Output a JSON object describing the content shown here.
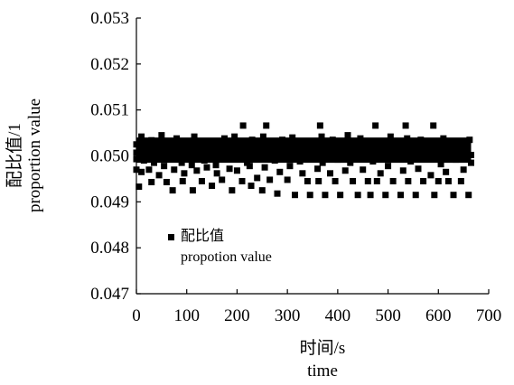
{
  "chart_data": {
    "type": "scatter",
    "title": "",
    "xlabel_lines": [
      "时间/s",
      "time"
    ],
    "ylabel_lines": [
      "配比值/1",
      "proportion value"
    ],
    "xlim": [
      0,
      700
    ],
    "ylim": [
      0.047,
      0.053
    ],
    "xticks": [
      0,
      100,
      200,
      300,
      400,
      500,
      600,
      700
    ],
    "yticks": [
      "0.047",
      "0.048",
      "0.049",
      "0.050",
      "0.051",
      "0.052",
      "0.053"
    ],
    "grid": false,
    "legend": {
      "placement": "inside-bottom-left",
      "entries": [
        {
          "label_lines": [
            "配比值",
            "propotion value"
          ],
          "marker": "square"
        }
      ]
    },
    "series": [
      {
        "name": "配比值",
        "marker": "square",
        "color": "#000000",
        "points": [
          [
            0,
            0.04993
          ],
          [
            0,
            0.05025
          ],
          [
            0,
            0.0497
          ],
          [
            0,
            0.05007
          ],
          [
            5,
            0.04933
          ],
          [
            10,
            0.05042
          ],
          [
            10,
            0.04965
          ],
          [
            15,
            0.0499
          ],
          [
            20,
            0.05005
          ],
          [
            22,
            0.05023
          ],
          [
            25,
            0.0497
          ],
          [
            30,
            0.05034
          ],
          [
            30,
            0.04943
          ],
          [
            35,
            0.04985
          ],
          [
            40,
            0.05015
          ],
          [
            45,
            0.04958
          ],
          [
            50,
            0.05045
          ],
          [
            52,
            0.05002
          ],
          [
            55,
            0.04978
          ],
          [
            60,
            0.04943
          ],
          [
            65,
            0.05028
          ],
          [
            70,
            0.04995
          ],
          [
            72,
            0.04925
          ],
          [
            75,
            0.0497
          ],
          [
            80,
            0.05038
          ],
          [
            85,
            0.05012
          ],
          [
            90,
            0.04985
          ],
          [
            92,
            0.04945
          ],
          [
            95,
            0.04962
          ],
          [
            100,
            0.0503
          ],
          [
            105,
            0.05008
          ],
          [
            110,
            0.0498
          ],
          [
            112,
            0.04925
          ],
          [
            115,
            0.05042
          ],
          [
            120,
            0.04968
          ],
          [
            125,
            0.05002
          ],
          [
            130,
            0.04945
          ],
          [
            132,
            0.05025
          ],
          [
            135,
            0.0499
          ],
          [
            140,
            0.04975
          ],
          [
            145,
            0.05018
          ],
          [
            150,
            0.04935
          ],
          [
            155,
            0.05032
          ],
          [
            158,
            0.0498
          ],
          [
            160,
            0.04962
          ],
          [
            165,
            0.05008
          ],
          [
            170,
            0.04948
          ],
          [
            175,
            0.05038
          ],
          [
            180,
            0.04993
          ],
          [
            185,
            0.04972
          ],
          [
            190,
            0.04925
          ],
          [
            192,
            0.05005
          ],
          [
            195,
            0.05042
          ],
          [
            200,
            0.04968
          ],
          [
            205,
            0.05002
          ],
          [
            210,
            0.04945
          ],
          [
            212,
            0.05066
          ],
          [
            215,
            0.05028
          ],
          [
            220,
            0.04985
          ],
          [
            225,
            0.04978
          ],
          [
            228,
            0.04935
          ],
          [
            230,
            0.05035
          ],
          [
            235,
            0.05012
          ],
          [
            240,
            0.04952
          ],
          [
            245,
            0.04995
          ],
          [
            250,
            0.04925
          ],
          [
            252,
            0.05042
          ],
          [
            255,
            0.04975
          ],
          [
            258,
            0.05066
          ],
          [
            260,
            0.05008
          ],
          [
            265,
            0.04948
          ],
          [
            270,
            0.0503
          ],
          [
            275,
            0.0499
          ],
          [
            280,
            0.04918
          ],
          [
            285,
            0.04965
          ],
          [
            290,
            0.05035
          ],
          [
            295,
            0.05005
          ],
          [
            300,
            0.04948
          ],
          [
            305,
            0.04978
          ],
          [
            310,
            0.0504
          ],
          [
            315,
            0.04915
          ],
          [
            320,
            0.05015
          ],
          [
            325,
            0.04988
          ],
          [
            330,
            0.04962
          ],
          [
            335,
            0.05032
          ],
          [
            340,
            0.04945
          ],
          [
            345,
            0.04915
          ],
          [
            350,
            0.04998
          ],
          [
            355,
            0.05025
          ],
          [
            360,
            0.04972
          ],
          [
            362,
            0.04945
          ],
          [
            365,
            0.05066
          ],
          [
            368,
            0.05042
          ],
          [
            370,
            0.04985
          ],
          [
            375,
            0.04915
          ],
          [
            380,
            0.05012
          ],
          [
            385,
            0.04962
          ],
          [
            390,
            0.05035
          ],
          [
            395,
            0.04945
          ],
          [
            400,
            0.04992
          ],
          [
            405,
            0.04915
          ],
          [
            410,
            0.05028
          ],
          [
            415,
            0.04968
          ],
          [
            420,
            0.05045
          ],
          [
            425,
            0.04985
          ],
          [
            430,
            0.04945
          ],
          [
            435,
            0.05008
          ],
          [
            440,
            0.04915
          ],
          [
            445,
            0.05038
          ],
          [
            450,
            0.0497
          ],
          [
            455,
            0.05002
          ],
          [
            460,
            0.04945
          ],
          [
            465,
            0.04915
          ],
          [
            468,
            0.05025
          ],
          [
            470,
            0.04988
          ],
          [
            475,
            0.05066
          ],
          [
            478,
            0.04945
          ],
          [
            480,
            0.05032
          ],
          [
            485,
            0.04962
          ],
          [
            490,
            0.05005
          ],
          [
            495,
            0.04915
          ],
          [
            500,
            0.04978
          ],
          [
            505,
            0.05042
          ],
          [
            510,
            0.04945
          ],
          [
            515,
            0.04995
          ],
          [
            520,
            0.05025
          ],
          [
            525,
            0.04915
          ],
          [
            530,
            0.04968
          ],
          [
            535,
            0.05066
          ],
          [
            538,
            0.05038
          ],
          [
            540,
            0.04945
          ],
          [
            545,
            0.04988
          ],
          [
            550,
            0.05012
          ],
          [
            555,
            0.04915
          ],
          [
            560,
            0.04972
          ],
          [
            565,
            0.05035
          ],
          [
            570,
            0.04945
          ],
          [
            575,
            0.04995
          ],
          [
            580,
            0.05028
          ],
          [
            585,
            0.04958
          ],
          [
            590,
            0.05066
          ],
          [
            592,
            0.04915
          ],
          [
            595,
            0.05005
          ],
          [
            600,
            0.04945
          ],
          [
            605,
            0.04982
          ],
          [
            610,
            0.05038
          ],
          [
            615,
            0.04965
          ],
          [
            620,
            0.04945
          ],
          [
            625,
            0.05015
          ],
          [
            630,
            0.04915
          ],
          [
            635,
            0.04992
          ],
          [
            640,
            0.05025
          ],
          [
            645,
            0.04945
          ],
          [
            650,
            0.0497
          ],
          [
            655,
            0.05008
          ],
          [
            660,
            0.04915
          ],
          [
            662,
            0.05035
          ],
          [
            665,
            0.04985
          ],
          [
            665,
            0.05002
          ]
        ]
      }
    ]
  }
}
